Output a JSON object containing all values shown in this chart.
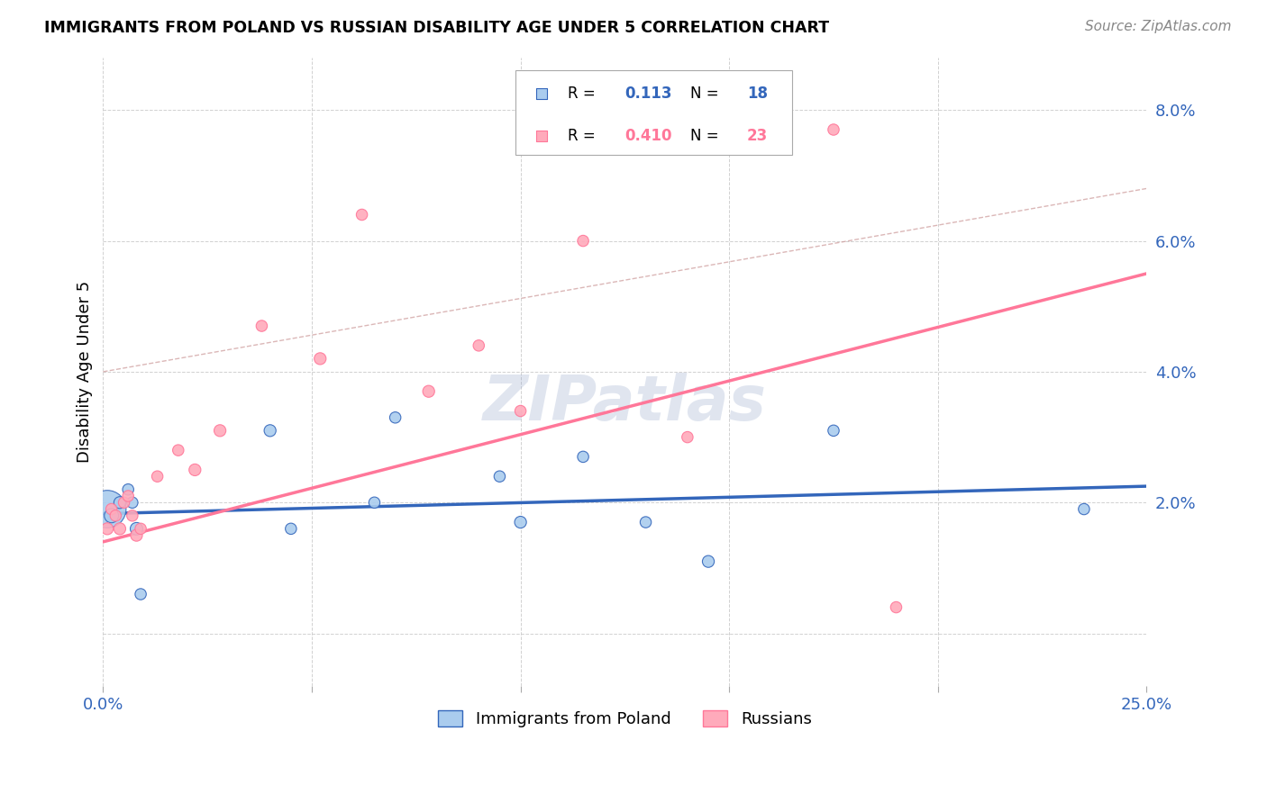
{
  "title": "IMMIGRANTS FROM POLAND VS RUSSIAN DISABILITY AGE UNDER 5 CORRELATION CHART",
  "source": "Source: ZipAtlas.com",
  "ylabel": "Disability Age Under 5",
  "xlim": [
    0.0,
    0.25
  ],
  "ylim": [
    -0.008,
    0.088
  ],
  "xticks": [
    0.0,
    0.05,
    0.1,
    0.15,
    0.2,
    0.25
  ],
  "xticklabels": [
    "0.0%",
    "",
    "",
    "",
    "",
    "25.0%"
  ],
  "yticks": [
    0.0,
    0.02,
    0.04,
    0.06,
    0.08
  ],
  "yticklabels": [
    "",
    "2.0%",
    "4.0%",
    "6.0%",
    "8.0%"
  ],
  "legend_val1": "0.113",
  "legend_nval1": "18",
  "legend_val2": "0.410",
  "legend_nval2": "23",
  "color_poland": "#aaccee",
  "color_russia": "#ffaabb",
  "color_poland_line": "#3366bb",
  "color_russia_line": "#ff7799",
  "watermark": "ZIPatlas",
  "watermark_color": "#99aacc",
  "poland_x": [
    0.001,
    0.002,
    0.004,
    0.006,
    0.007,
    0.008,
    0.009,
    0.04,
    0.045,
    0.065,
    0.07,
    0.095,
    0.1,
    0.115,
    0.13,
    0.145,
    0.175,
    0.235
  ],
  "poland_y": [
    0.019,
    0.018,
    0.02,
    0.022,
    0.02,
    0.016,
    0.006,
    0.031,
    0.016,
    0.02,
    0.033,
    0.024,
    0.017,
    0.027,
    0.017,
    0.011,
    0.031,
    0.019
  ],
  "poland_size": [
    900,
    130,
    90,
    80,
    80,
    100,
    80,
    90,
    80,
    80,
    80,
    80,
    90,
    80,
    80,
    90,
    80,
    80
  ],
  "russia_x": [
    0.001,
    0.002,
    0.003,
    0.004,
    0.005,
    0.006,
    0.007,
    0.008,
    0.009,
    0.013,
    0.018,
    0.022,
    0.028,
    0.038,
    0.052,
    0.062,
    0.078,
    0.09,
    0.1,
    0.115,
    0.14,
    0.175,
    0.19
  ],
  "russia_y": [
    0.016,
    0.019,
    0.018,
    0.016,
    0.02,
    0.021,
    0.018,
    0.015,
    0.016,
    0.024,
    0.028,
    0.025,
    0.031,
    0.047,
    0.042,
    0.064,
    0.037,
    0.044,
    0.034,
    0.06,
    0.03,
    0.077,
    0.004
  ],
  "russia_size": [
    90,
    80,
    80,
    90,
    80,
    80,
    80,
    90,
    80,
    80,
    80,
    90,
    90,
    80,
    90,
    80,
    90,
    80,
    80,
    80,
    80,
    80,
    80
  ],
  "blue_line_start_y": 0.0183,
  "blue_line_end_y": 0.0225,
  "pink_line_start_y": 0.014,
  "pink_line_end_y": 0.055,
  "dash_line_start_y": 0.04,
  "dash_line_end_y": 0.068
}
